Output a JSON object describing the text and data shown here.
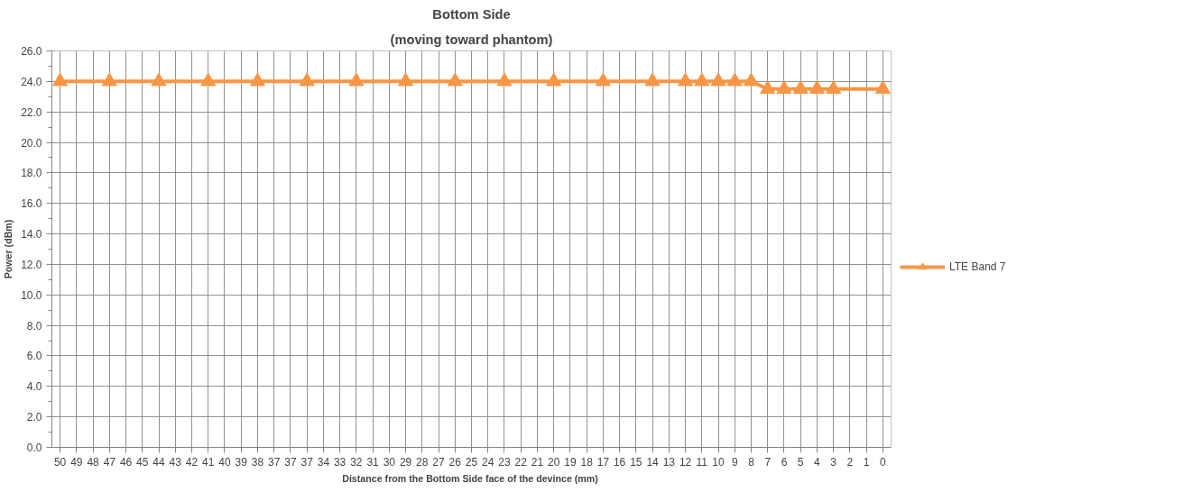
{
  "chart_data": {
    "type": "line",
    "title": "Bottom Side",
    "subtitle": "(moving toward phantom)",
    "xlabel": "Distance from the Bottom Side  face of the devince (mm)",
    "ylabel": "Power (dBm)",
    "categories": [
      "50",
      "49",
      "48",
      "47",
      "46",
      "45",
      "44",
      "43",
      "42",
      "41",
      "40",
      "39",
      "38",
      "37",
      "37",
      "37",
      "34",
      "33",
      "32",
      "31",
      "30",
      "29",
      "28",
      "27",
      "26",
      "25",
      "24",
      "23",
      "22",
      "21",
      "20",
      "19",
      "18",
      "17",
      "16",
      "15",
      "14",
      "13",
      "12",
      "11",
      "10",
      "9",
      "8",
      "7",
      "6",
      "5",
      "4",
      "3",
      "2",
      "1",
      "0"
    ],
    "series": [
      {
        "name": "LTE Band 7",
        "color": "#f79646",
        "values": [
          24.0,
          null,
          null,
          24.0,
          null,
          null,
          24.0,
          null,
          null,
          24.0,
          null,
          null,
          24.0,
          null,
          null,
          24.0,
          null,
          null,
          24.0,
          null,
          null,
          24.0,
          null,
          null,
          24.0,
          null,
          null,
          24.0,
          null,
          null,
          24.0,
          null,
          null,
          24.0,
          null,
          null,
          24.0,
          null,
          24.0,
          24.0,
          24.0,
          24.0,
          24.0,
          23.5,
          23.5,
          23.5,
          23.5,
          23.5,
          null,
          null,
          23.5
        ]
      }
    ],
    "ylim": [
      0,
      26
    ],
    "yticks": [
      {
        "value": 0,
        "label": "0.0"
      },
      {
        "value": 2,
        "label": "2.0"
      },
      {
        "value": 4,
        "label": "4.0"
      },
      {
        "value": 6,
        "label": "6.0"
      },
      {
        "value": 8,
        "label": "8.0"
      },
      {
        "value": 10,
        "label": "10.0"
      },
      {
        "value": 12,
        "label": "12.0"
      },
      {
        "value": 14,
        "label": "14.0"
      },
      {
        "value": 16,
        "label": "16.0"
      },
      {
        "value": 18,
        "label": "18.0"
      },
      {
        "value": 20,
        "label": "20.0"
      },
      {
        "value": 22,
        "label": "22.0"
      },
      {
        "value": 24,
        "label": "24.0"
      },
      {
        "value": 26,
        "label": "26.0"
      }
    ],
    "grid": true,
    "legend": "right",
    "marker": "triangle",
    "line_style": "solid"
  }
}
